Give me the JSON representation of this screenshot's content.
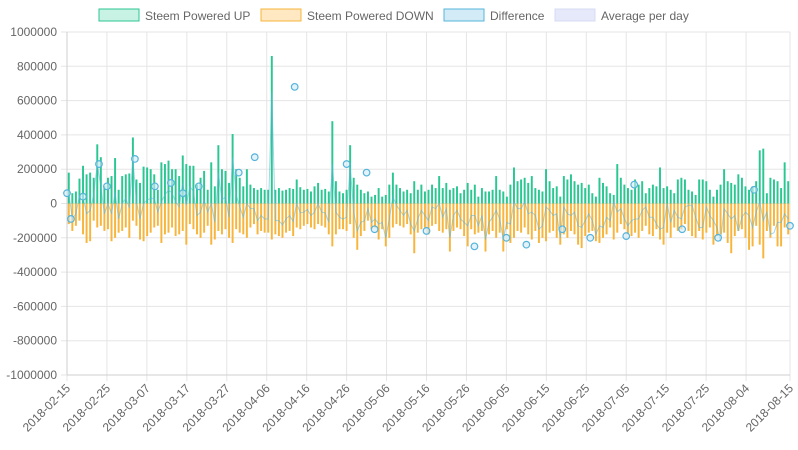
{
  "chart_data": {
    "type": "bar",
    "y_ticks": [
      1000000,
      800000,
      600000,
      400000,
      200000,
      0,
      -200000,
      -400000,
      -600000,
      -800000,
      -1000000
    ],
    "ylim": [
      -1000000,
      1000000
    ],
    "x_start": "2018-02-15",
    "x_end": "2018-08-15",
    "x_ticks": [
      "2018-02-15",
      "2018-02-25",
      "2018-03-07",
      "2018-03-17",
      "2018-03-27",
      "2018-04-06",
      "2018-04-16",
      "2018-04-26",
      "2018-05-06",
      "2018-05-16",
      "2018-05-26",
      "2018-06-05",
      "2018-06-15",
      "2018-06-25",
      "2018-07-05",
      "2018-07-15",
      "2018-07-25",
      "2018-08-04",
      "2018-08-15"
    ],
    "grid": true,
    "legend_position": "top",
    "legend": [
      {
        "label": "Steem Powered UP",
        "fill": "#c8f2e4",
        "stroke": "#2bc792"
      },
      {
        "label": "Steem Powered DOWN",
        "fill": "#ffe8c2",
        "stroke": "#f7b53c"
      },
      {
        "label": "Difference",
        "fill": "#d2ebf7",
        "stroke": "#56b4da"
      },
      {
        "label": "Average per day",
        "fill": "#e6e9fa",
        "stroke": "#d7dcf2"
      }
    ],
    "colors": {
      "up": "#2bc792",
      "down": "#f7b53c",
      "difference": "#56b4da",
      "grid": "#e5e5e5"
    },
    "series": [
      {
        "name": "Steem Powered UP",
        "values": [
          180000,
          60000,
          70000,
          145000,
          220000,
          170000,
          180000,
          150000,
          345000,
          270000,
          100000,
          150000,
          160000,
          265000,
          80000,
          160000,
          170000,
          175000,
          385000,
          140000,
          120000,
          215000,
          210000,
          200000,
          170000,
          80000,
          240000,
          230000,
          250000,
          200000,
          200000,
          160000,
          280000,
          230000,
          220000,
          220000,
          110000,
          150000,
          190000,
          80000,
          240000,
          100000,
          340000,
          200000,
          190000,
          120000,
          405000,
          200000,
          150000,
          100000,
          200000,
          110000,
          90000,
          80000,
          90000,
          80000,
          80000,
          860000,
          80000,
          90000,
          75000,
          80000,
          90000,
          85000,
          140000,
          95000,
          80000,
          85000,
          70000,
          100000,
          120000,
          80000,
          85000,
          70000,
          480000,
          130000,
          70000,
          60000,
          80000,
          340000,
          150000,
          110000,
          80000,
          60000,
          70000,
          40000,
          50000,
          90000,
          40000,
          50000,
          110000,
          180000,
          110000,
          90000,
          70000,
          80000,
          60000,
          130000,
          80000,
          110000,
          70000,
          80000,
          110000,
          90000,
          160000,
          90000,
          120000,
          80000,
          90000,
          100000,
          60000,
          80000,
          120000,
          80000,
          110000,
          40000,
          90000,
          70000,
          70000,
          80000,
          160000,
          80000,
          70000,
          40000,
          110000,
          210000,
          130000,
          140000,
          150000,
          120000,
          160000,
          90000,
          80000,
          70000,
          200000,
          130000,
          90000,
          100000,
          40000,
          160000,
          140000,
          170000,
          130000,
          110000,
          120000,
          90000,
          110000,
          60000,
          40000,
          150000,
          120000,
          100000,
          60000,
          50000,
          230000,
          150000,
          110000,
          90000,
          80000,
          140000,
          110000,
          130000,
          60000,
          90000,
          110000,
          100000,
          210000,
          90000,
          100000,
          80000,
          60000,
          140000,
          150000,
          140000,
          80000,
          70000,
          50000,
          140000,
          140000,
          130000,
          80000,
          40000,
          80000,
          110000,
          200000,
          130000,
          120000,
          110000,
          170000,
          150000,
          100000,
          80000,
          100000,
          130000,
          310000,
          320000,
          60000,
          150000,
          140000,
          130000,
          90000,
          240000,
          130000
        ]
      },
      {
        "name": "Steem Powered DOWN",
        "values": [
          -120000,
          -160000,
          -130000,
          -100000,
          -180000,
          -230000,
          -220000,
          -100000,
          -140000,
          -130000,
          -160000,
          -150000,
          -220000,
          -200000,
          -170000,
          -160000,
          -140000,
          -200000,
          -100000,
          -130000,
          -210000,
          -220000,
          -190000,
          -170000,
          -140000,
          -130000,
          -230000,
          -180000,
          -170000,
          -140000,
          -190000,
          -180000,
          -160000,
          -240000,
          -120000,
          -150000,
          -180000,
          -200000,
          -170000,
          -130000,
          -240000,
          -210000,
          -160000,
          -180000,
          -150000,
          -200000,
          -230000,
          -150000,
          -170000,
          -180000,
          -200000,
          -140000,
          -120000,
          -180000,
          -160000,
          -170000,
          -170000,
          -210000,
          -180000,
          -190000,
          -200000,
          -170000,
          -160000,
          -190000,
          -140000,
          -150000,
          -130000,
          -120000,
          -140000,
          -150000,
          -120000,
          -130000,
          -140000,
          -180000,
          -250000,
          -180000,
          -150000,
          -150000,
          -160000,
          -120000,
          -200000,
          -270000,
          -190000,
          -160000,
          -100000,
          -150000,
          -140000,
          -210000,
          -150000,
          -250000,
          -200000,
          -140000,
          -120000,
          -130000,
          -140000,
          -120000,
          -180000,
          -290000,
          -170000,
          -150000,
          -140000,
          -180000,
          -130000,
          -120000,
          -160000,
          -170000,
          -150000,
          -280000,
          -160000,
          -140000,
          -150000,
          -190000,
          -250000,
          -150000,
          -180000,
          -170000,
          -160000,
          -280000,
          -180000,
          -160000,
          -200000,
          -170000,
          -280000,
          -150000,
          -230000,
          -200000,
          -160000,
          -170000,
          -140000,
          -180000,
          -210000,
          -160000,
          -230000,
          -200000,
          -220000,
          -170000,
          -160000,
          -200000,
          -240000,
          -180000,
          -200000,
          -160000,
          -180000,
          -240000,
          -260000,
          -190000,
          -170000,
          -160000,
          -220000,
          -230000,
          -200000,
          -180000,
          -140000,
          -210000,
          -170000,
          -120000,
          -150000,
          -180000,
          -190000,
          -170000,
          -200000,
          -160000,
          -130000,
          -180000,
          -190000,
          -150000,
          -210000,
          -240000,
          -170000,
          -200000,
          -140000,
          -160000,
          -150000,
          -120000,
          -160000,
          -190000,
          -200000,
          -160000,
          -210000,
          -170000,
          -140000,
          -240000,
          -190000,
          -180000,
          -170000,
          -230000,
          -290000,
          -190000,
          -160000,
          -150000,
          -200000,
          -270000,
          -250000,
          -130000,
          -240000,
          -320000,
          -160000,
          -200000,
          -130000,
          -250000,
          -250000,
          -140000,
          -180000
        ]
      },
      {
        "name": "Difference",
        "values": [
          60000,
          -90000,
          -60000,
          45000,
          40000,
          -60000,
          -40000,
          50000,
          230000,
          100000,
          -60000,
          0,
          -60000,
          65000,
          -90000,
          0,
          30000,
          -25000,
          260000,
          10000,
          -90000,
          0,
          20000,
          30000,
          30000,
          -50000,
          10000,
          50000,
          80000,
          60000,
          10000,
          -20000,
          120000,
          -10000,
          100000,
          70000,
          -70000,
          -50000,
          20000,
          -50000,
          0,
          -110000,
          180000,
          20000,
          40000,
          -80000,
          270000,
          50000,
          -20000,
          -80000,
          0,
          -30000,
          -30000,
          -100000,
          -70000,
          -90000,
          -90000,
          650000,
          -100000,
          -100000,
          -125000,
          -90000,
          -70000,
          -105000,
          0,
          -55000,
          -50000,
          -35000,
          -70000,
          -50000,
          0,
          -50000,
          -55000,
          -110000,
          230000,
          -50000,
          -80000,
          -90000,
          -80000,
          220000,
          -50000,
          -160000,
          -110000,
          -100000,
          -30000,
          -110000,
          -90000,
          -120000,
          -110000,
          -200000,
          -90000,
          40000,
          -10000,
          -40000,
          -70000,
          -40000,
          -120000,
          -160000,
          -90000,
          -40000,
          -70000,
          -100000,
          -20000,
          -30000,
          0,
          -80000,
          -30000,
          -200000,
          -70000,
          -40000,
          -90000,
          -110000,
          -130000,
          -70000,
          -70000,
          -130000,
          -70000,
          -210000,
          -110000,
          -80000,
          -40000,
          -90000,
          -210000,
          -110000,
          -120000,
          10000,
          -30000,
          -30000,
          10000,
          -60000,
          -50000,
          -70000,
          -150000,
          -130000,
          -20000,
          -40000,
          -70000,
          -60000,
          -200000,
          -20000,
          -60000,
          -70000,
          -50000,
          -130000,
          -140000,
          -100000,
          -60000,
          -100000,
          -180000,
          -130000,
          -140000,
          -80000,
          -100000,
          10000,
          -50000,
          -30000,
          -90000,
          -130000,
          -100000,
          -90000,
          -90000,
          -40000,
          -20000,
          -80000,
          -80000,
          -120000,
          -150000,
          -140000,
          0,
          -110000,
          -40000,
          -80000,
          -90000,
          -20000,
          -10000,
          -10000,
          -80000,
          -140000,
          -140000,
          -20000,
          -70000,
          -100000,
          -140000,
          -220000,
          -30000,
          -60000,
          -90000,
          -70000,
          -160000,
          -80000,
          -50000,
          -70000,
          -140000,
          -50000,
          10000,
          -100000,
          -50000,
          -180000,
          -170000,
          -110000,
          -110000,
          -60000,
          -90000,
          -120000,
          -140000,
          -50000,
          -50000
        ]
      }
    ],
    "difference_markers": [
      {
        "x": "2018-02-15",
        "y": 60000
      },
      {
        "x": "2018-02-16",
        "y": -90000
      },
      {
        "x": "2018-02-19",
        "y": 40000
      },
      {
        "x": "2018-02-23",
        "y": 230000
      },
      {
        "x": "2018-02-25",
        "y": 100000
      },
      {
        "x": "2018-03-04",
        "y": 260000
      },
      {
        "x": "2018-03-09",
        "y": 100000
      },
      {
        "x": "2018-03-13",
        "y": 120000
      },
      {
        "x": "2018-03-16",
        "y": 60000
      },
      {
        "x": "2018-03-20",
        "y": 100000
      },
      {
        "x": "2018-03-30",
        "y": 180000
      },
      {
        "x": "2018-04-03",
        "y": 270000
      },
      {
        "x": "2018-04-13",
        "y": 680000
      },
      {
        "x": "2018-04-26",
        "y": 230000
      },
      {
        "x": "2018-05-01",
        "y": 180000
      },
      {
        "x": "2018-05-03",
        "y": -150000
      },
      {
        "x": "2018-05-16",
        "y": -160000
      },
      {
        "x": "2018-05-28",
        "y": -250000
      },
      {
        "x": "2018-06-05",
        "y": -200000
      },
      {
        "x": "2018-06-10",
        "y": -240000
      },
      {
        "x": "2018-06-19",
        "y": -150000
      },
      {
        "x": "2018-06-26",
        "y": -200000
      },
      {
        "x": "2018-07-05",
        "y": -190000
      },
      {
        "x": "2018-07-07",
        "y": 110000
      },
      {
        "x": "2018-07-19",
        "y": -150000
      },
      {
        "x": "2018-07-28",
        "y": -200000
      },
      {
        "x": "2018-08-06",
        "y": 80000
      },
      {
        "x": "2018-08-15",
        "y": -130000
      }
    ]
  }
}
